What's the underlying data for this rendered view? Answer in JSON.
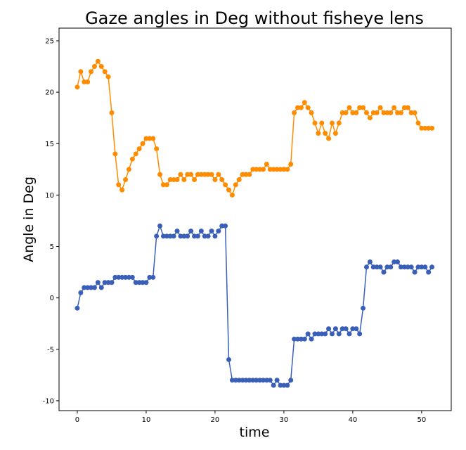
{
  "chart_data": {
    "type": "line",
    "title": "Gaze angles in Deg without fisheye lens",
    "x_label": "time",
    "y_label": "Angle in Deg",
    "x": [
      0,
      0.5,
      1,
      1.5,
      2,
      2.5,
      3,
      3.5,
      4,
      4.5,
      5,
      5.5,
      6,
      6.5,
      7,
      7.5,
      8,
      8.5,
      9,
      9.5,
      10,
      10.5,
      11,
      11.5,
      12,
      12.5,
      13,
      13.5,
      14,
      14.5,
      15,
      15.5,
      16,
      16.5,
      17,
      17.5,
      18,
      18.5,
      19,
      19.5,
      20,
      20.5,
      21,
      21.5,
      22,
      22.5,
      23,
      23.5,
      24,
      24.5,
      25,
      25.5,
      26,
      26.5,
      27,
      27.5,
      28,
      28.5,
      29,
      29.5,
      30,
      30.5,
      31,
      31.5,
      32,
      32.5,
      33,
      33.5,
      34,
      34.5,
      35,
      35.5,
      36,
      36.5,
      37,
      37.5,
      38,
      38.5,
      39,
      39.5,
      40,
      40.5,
      41,
      41.5,
      42,
      42.5,
      43,
      43.5,
      44,
      44.5,
      45,
      45.5,
      46,
      46.5,
      47,
      47.5,
      48,
      48.5,
      49,
      49.5,
      50,
      50.5,
      51,
      51.5
    ],
    "series": [
      {
        "color": "#ff8c00",
        "values": [
          20.5,
          22,
          21,
          21,
          22,
          22.5,
          23,
          22.5,
          22,
          21.5,
          18,
          14,
          11,
          10.5,
          11.5,
          12.5,
          13.5,
          14,
          14.5,
          15,
          15.5,
          15.5,
          15.5,
          14.5,
          12,
          11,
          11,
          11.5,
          11.5,
          11.5,
          12,
          11.5,
          12,
          12,
          11.5,
          12,
          12,
          12,
          12,
          12,
          11.5,
          12,
          11.5,
          11,
          10.5,
          10,
          11,
          11.5,
          12,
          12,
          12,
          12.5,
          12.5,
          12.5,
          12.5,
          13,
          12.5,
          12.5,
          12.5,
          12.5,
          12.5,
          12.5,
          13,
          18,
          18.5,
          18.5,
          19,
          18.5,
          18,
          17,
          16,
          17,
          16,
          15.5,
          17,
          16,
          17,
          18,
          18,
          18.5,
          18,
          18,
          18.5,
          18.5,
          18,
          17.5,
          18,
          18,
          18.5,
          18,
          18,
          18,
          18.5,
          18,
          18,
          18.5,
          18.5,
          18,
          18,
          17,
          16.5,
          16.5,
          16.5,
          16.5
        ]
      },
      {
        "color": "#3a5fb8",
        "values": [
          -1,
          0.5,
          1,
          1,
          1,
          1,
          1.5,
          1,
          1.5,
          1.5,
          1.5,
          2,
          2,
          2,
          2,
          2,
          2,
          1.5,
          1.5,
          1.5,
          1.5,
          2,
          2,
          6,
          7,
          6,
          6,
          6,
          6,
          6.5,
          6,
          6,
          6,
          6.5,
          6,
          6,
          6.5,
          6,
          6,
          6.5,
          6,
          6.5,
          7,
          7,
          -6,
          -8,
          -8,
          -8,
          -8,
          -8,
          -8,
          -8,
          -8,
          -8,
          -8,
          -8,
          -8,
          -8.5,
          -8,
          -8.5,
          -8.5,
          -8.5,
          -8,
          -4,
          -4,
          -4,
          -4,
          -3.5,
          -4,
          -3.5,
          -3.5,
          -3.5,
          -3.5,
          -3,
          -3.5,
          -3,
          -3.5,
          -3,
          -3,
          -3.5,
          -3,
          -3,
          -3.5,
          -1,
          3,
          3.5,
          3,
          3,
          3,
          2.5,
          3,
          3,
          3.5,
          3.5,
          3,
          3,
          3,
          3,
          2.5,
          3,
          3,
          3,
          2.5,
          3
        ]
      }
    ],
    "xlim": [
      -2.65,
      54.3
    ],
    "ylim": [
      -10.96,
      26.23
    ],
    "xticks": [
      0,
      10,
      20,
      30,
      40,
      50
    ],
    "yticks": [
      -10,
      -5,
      0,
      5,
      10,
      15,
      20,
      25
    ],
    "grid": false
  }
}
